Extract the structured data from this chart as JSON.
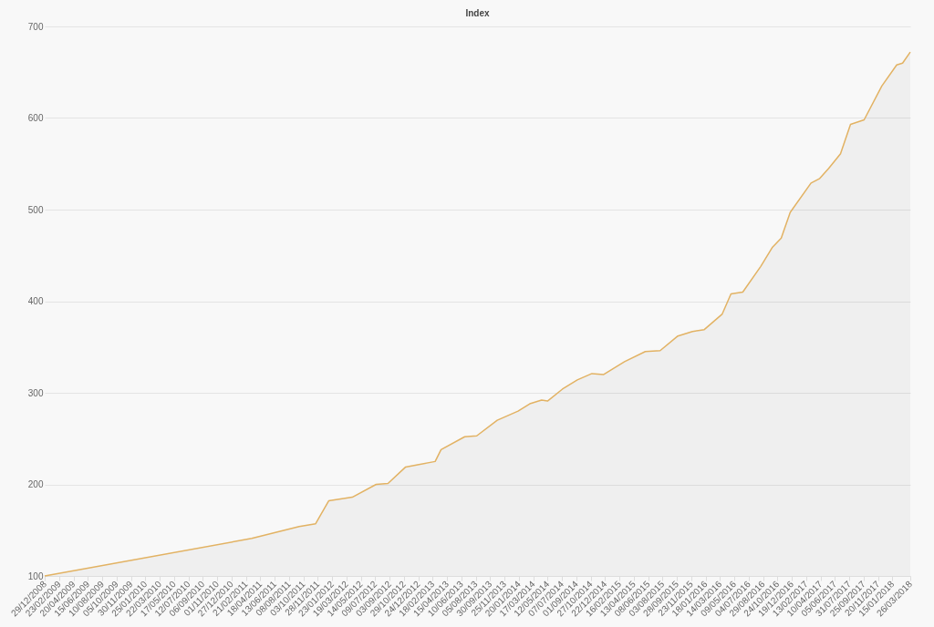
{
  "chart_data": {
    "type": "area",
    "title": "Index",
    "grid": "y",
    "x": [
      "2008-12-29",
      "2011-03-16",
      "2011-09-17",
      "2011-11-20",
      "2012-01-10",
      "2012-04-11",
      "2012-07-13",
      "2012-08-28",
      "2012-11-05",
      "2013-02-28",
      "2013-03-23",
      "2013-06-23",
      "2013-08-09",
      "2013-10-28",
      "2014-01-17",
      "2014-03-04",
      "2014-04-19",
      "2014-05-12",
      "2014-07-09",
      "2014-09-05",
      "2014-11-01",
      "2014-12-17",
      "2015-03-08",
      "2015-05-28",
      "2015-07-25",
      "2015-10-02",
      "2015-11-28",
      "2016-01-13",
      "2016-03-23",
      "2016-04-26",
      "2016-06-11",
      "2016-08-20",
      "2016-10-05",
      "2016-11-08",
      "2016-12-13",
      "2017-03-04",
      "2017-04-07",
      "2017-05-12",
      "2017-06-27",
      "2017-08-05",
      "2017-09-27",
      "2017-12-05",
      "2018-02-01",
      "2018-02-24",
      "2018-03-26"
    ],
    "series": [
      {
        "color": "#e2b263",
        "values": [
          100,
          141,
          154,
          157,
          182,
          186,
          200,
          201,
          219,
          225,
          238,
          252,
          253,
          270,
          280,
          288,
          292,
          291,
          304,
          314,
          321,
          320,
          334,
          345,
          346,
          362,
          367,
          369,
          386,
          408,
          410,
          438,
          459,
          469,
          497,
          529,
          534,
          545,
          561,
          593,
          598,
          635,
          658,
          660,
          672
        ]
      }
    ],
    "xlim": [
      "2008-12-29",
      "2018-03-26"
    ],
    "xticks": [
      {
        "value": "2008-12-29",
        "label": "29/12/2008"
      },
      {
        "value": "2009-02-23",
        "label": "23/02/2009"
      },
      {
        "value": "2009-04-20",
        "label": "20/04/2009"
      },
      {
        "value": "2009-06-15",
        "label": "15/06/2009"
      },
      {
        "value": "2009-08-10",
        "label": "10/08/2009"
      },
      {
        "value": "2009-10-05",
        "label": "05/10/2009"
      },
      {
        "value": "2009-11-30",
        "label": "30/11/2009"
      },
      {
        "value": "2010-01-25",
        "label": "25/01/2010"
      },
      {
        "value": "2010-03-22",
        "label": "22/03/2010"
      },
      {
        "value": "2010-05-17",
        "label": "17/05/2010"
      },
      {
        "value": "2010-07-12",
        "label": "12/07/2010"
      },
      {
        "value": "2010-09-06",
        "label": "06/09/2010"
      },
      {
        "value": "2010-11-01",
        "label": "01/11/2010"
      },
      {
        "value": "2010-12-27",
        "label": "27/12/2010"
      },
      {
        "value": "2011-02-21",
        "label": "21/02/2011"
      },
      {
        "value": "2011-04-18",
        "label": "18/04/2011"
      },
      {
        "value": "2011-06-13",
        "label": "13/06/2011"
      },
      {
        "value": "2011-08-08",
        "label": "08/08/2011"
      },
      {
        "value": "2011-10-03",
        "label": "03/10/2011"
      },
      {
        "value": "2011-11-28",
        "label": "28/11/2011"
      },
      {
        "value": "2012-01-23",
        "label": "23/01/2012"
      },
      {
        "value": "2012-03-19",
        "label": "19/03/2012"
      },
      {
        "value": "2012-05-14",
        "label": "14/05/2012"
      },
      {
        "value": "2012-07-09",
        "label": "09/07/2012"
      },
      {
        "value": "2012-09-03",
        "label": "03/09/2012"
      },
      {
        "value": "2012-10-29",
        "label": "29/10/2012"
      },
      {
        "value": "2012-12-24",
        "label": "24/12/2012"
      },
      {
        "value": "2013-02-18",
        "label": "18/02/2013"
      },
      {
        "value": "2013-04-15",
        "label": "15/04/2013"
      },
      {
        "value": "2013-06-10",
        "label": "10/06/2013"
      },
      {
        "value": "2013-08-05",
        "label": "05/08/2013"
      },
      {
        "value": "2013-09-30",
        "label": "30/09/2013"
      },
      {
        "value": "2013-11-25",
        "label": "25/11/2013"
      },
      {
        "value": "2014-01-20",
        "label": "20/01/2014"
      },
      {
        "value": "2014-03-17",
        "label": "17/03/2014"
      },
      {
        "value": "2014-05-12",
        "label": "12/05/2014"
      },
      {
        "value": "2014-07-07",
        "label": "07/07/2014"
      },
      {
        "value": "2014-09-01",
        "label": "01/09/2014"
      },
      {
        "value": "2014-10-27",
        "label": "27/10/2014"
      },
      {
        "value": "2014-12-22",
        "label": "22/12/2014"
      },
      {
        "value": "2015-02-16",
        "label": "16/02/2015"
      },
      {
        "value": "2015-04-13",
        "label": "13/04/2015"
      },
      {
        "value": "2015-06-08",
        "label": "08/06/2015"
      },
      {
        "value": "2015-08-03",
        "label": "03/08/2015"
      },
      {
        "value": "2015-09-28",
        "label": "28/09/2015"
      },
      {
        "value": "2015-11-23",
        "label": "23/11/2015"
      },
      {
        "value": "2016-01-18",
        "label": "18/01/2016"
      },
      {
        "value": "2016-03-14",
        "label": "14/03/2016"
      },
      {
        "value": "2016-05-09",
        "label": "09/05/2016"
      },
      {
        "value": "2016-07-04",
        "label": "04/07/2016"
      },
      {
        "value": "2016-08-29",
        "label": "29/08/2016"
      },
      {
        "value": "2016-10-24",
        "label": "24/10/2016"
      },
      {
        "value": "2016-12-19",
        "label": "19/12/2016"
      },
      {
        "value": "2017-02-13",
        "label": "13/02/2017"
      },
      {
        "value": "2017-04-10",
        "label": "10/04/2017"
      },
      {
        "value": "2017-06-05",
        "label": "05/06/2017"
      },
      {
        "value": "2017-07-31",
        "label": "31/07/2017"
      },
      {
        "value": "2017-09-25",
        "label": "25/09/2017"
      },
      {
        "value": "2017-11-20",
        "label": "20/11/2017"
      },
      {
        "value": "2018-01-15",
        "label": "15/01/2018"
      },
      {
        "value": "2018-03-26",
        "label": "26/03/2018"
      }
    ],
    "ylim": [
      100,
      700
    ],
    "yticks": [
      100,
      200,
      300,
      400,
      500,
      600,
      700
    ]
  }
}
